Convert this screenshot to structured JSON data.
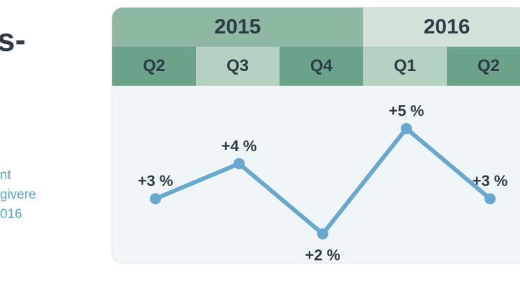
{
  "left_text": {
    "title_fragment": "s-",
    "subtitle_lines": [
      "nt",
      "givere",
      "016"
    ]
  },
  "colors": {
    "year_2015": "#8fb8a3",
    "year_2016": "#d3e2d9",
    "quarter_dark": "#6aa389",
    "quarter_light": "#b5d1c1",
    "line": "#66a8cf",
    "label": "#2d3b46"
  },
  "chart_data": {
    "type": "line",
    "years": [
      {
        "label": "2015",
        "quarters": [
          "Q2",
          "Q3",
          "Q4"
        ]
      },
      {
        "label": "2016",
        "quarters": [
          "Q1",
          "Q2"
        ]
      }
    ],
    "categories": [
      "Q2",
      "Q3",
      "Q4",
      "Q1",
      "Q2"
    ],
    "series": [
      {
        "values": [
          3,
          4,
          2,
          5,
          3
        ]
      }
    ],
    "data_labels": [
      "+3 %",
      "+4 %",
      "+2 %",
      "+5 %",
      "+3 %"
    ],
    "ylim": [
      1,
      6
    ],
    "grid": false
  }
}
